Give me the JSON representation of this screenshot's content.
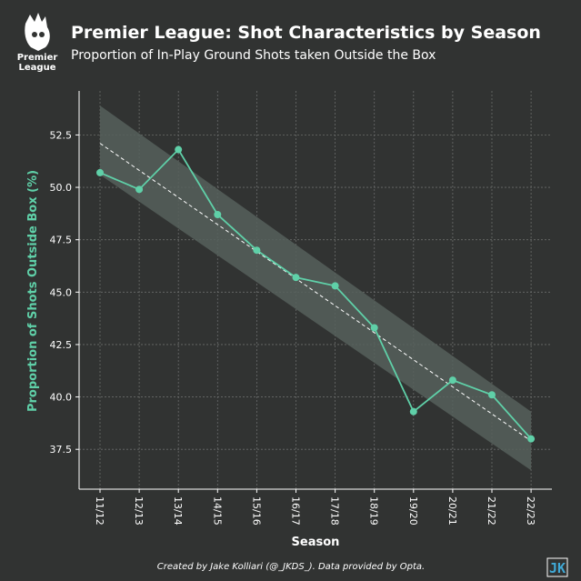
{
  "header": {
    "logo_text_line1": "Premier",
    "logo_text_line2": "League",
    "title": "Premier League: Shot Characteristics by Season",
    "subtitle": "Proportion of In-Play Ground Shots taken Outside the Box"
  },
  "footer": {
    "credit": "Created by Jake Kolliari (@_JKDS_). Data provided by Opta.",
    "badge": "JK"
  },
  "colors": {
    "background": "#313332",
    "accent": "#5fd0a8",
    "band": "#56605c",
    "grid": "#6a6c6b",
    "trend": "#ffffff"
  },
  "chart_data": {
    "type": "line",
    "x": [
      "11/12",
      "12/13",
      "13/14",
      "14/15",
      "15/16",
      "16/17",
      "17/18",
      "18/19",
      "19/20",
      "20/21",
      "21/22",
      "22/23"
    ],
    "series": [
      {
        "values": [
          50.7,
          49.9,
          51.8,
          48.7,
          47.0,
          45.7,
          45.3,
          43.3,
          39.3,
          40.8,
          40.1,
          38.0
        ]
      }
    ],
    "trend_line": {
      "style": "dashed",
      "start": 52.1,
      "end": 37.9,
      "confidence_band": {
        "lower_start": 50.6,
        "upper_start": 53.9,
        "lower_end": 36.5,
        "upper_end": 39.3
      }
    },
    "xlabel": "Season",
    "ylabel": "Proportion of Shots Outside Box (%)",
    "yticks": [
      37.5,
      40.0,
      42.5,
      45.0,
      47.5,
      50.0,
      52.5
    ],
    "ylim": [
      35.6,
      54.6
    ],
    "grid": true
  }
}
